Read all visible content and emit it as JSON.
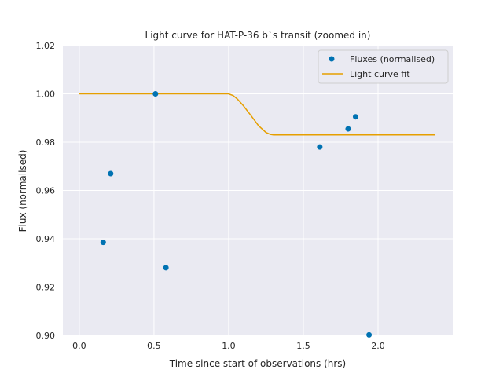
{
  "chart_data": {
    "type": "scatter",
    "title": "Light curve for HAT-P-36 b`s transit (zoomed in)",
    "xlabel": "Time since start of observations (hrs)",
    "ylabel": "Flux (normalised)",
    "xlim": [
      -0.11,
      2.5
    ],
    "ylim": [
      0.9,
      1.02
    ],
    "xticks": [
      0.0,
      0.5,
      1.0,
      1.5,
      2.0
    ],
    "xtick_labels": [
      "0.0",
      "0.5",
      "1.0",
      "1.5",
      "2.0"
    ],
    "yticks": [
      0.9,
      0.92,
      0.94,
      0.96,
      0.98,
      1.0,
      1.02
    ],
    "ytick_labels": [
      "0.90",
      "0.92",
      "0.94",
      "0.96",
      "0.98",
      "1.00",
      "1.02"
    ],
    "grid": true,
    "legend_position": "top-right",
    "series": [
      {
        "name": "Fluxes (normalised)",
        "kind": "scatter",
        "color": "#0072b2",
        "x": [
          0.16,
          0.21,
          0.51,
          0.58,
          1.61,
          1.8,
          1.85,
          1.94
        ],
        "y": [
          0.9385,
          0.967,
          1.0,
          0.928,
          0.978,
          0.9855,
          0.9905,
          0.9002
        ]
      },
      {
        "name": "Light curve fit",
        "kind": "line",
        "color": "#e69f00",
        "x": [
          0.0,
          1.0,
          1.03,
          1.06,
          1.1,
          1.15,
          1.2,
          1.25,
          1.28,
          1.3,
          2.38
        ],
        "y": [
          1.0,
          1.0,
          0.9993,
          0.9978,
          0.995,
          0.991,
          0.9868,
          0.984,
          0.9832,
          0.983,
          0.983
        ]
      }
    ]
  }
}
